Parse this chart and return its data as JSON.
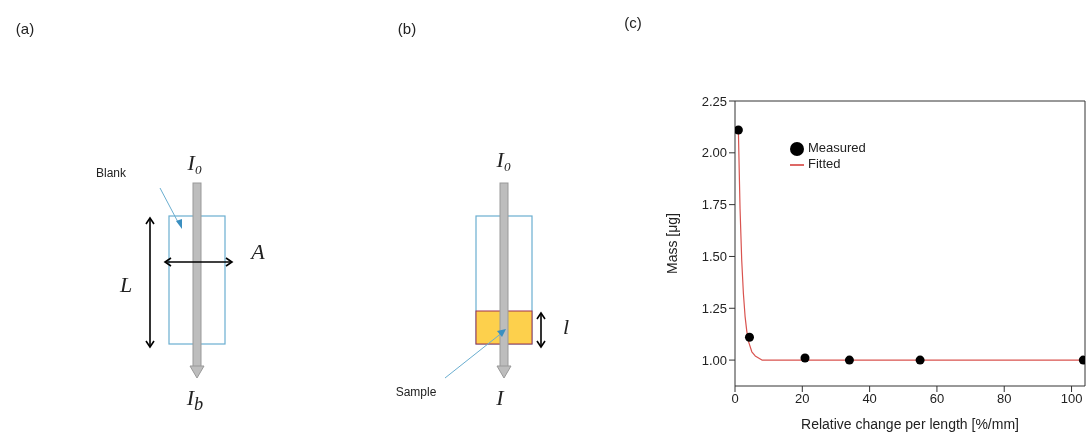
{
  "chart_data": [
    {
      "type": "other",
      "title": "(a)",
      "annotations": [
        "Blank",
        "I₀",
        "A",
        "L",
        "I$_{b}$"
      ]
    },
    {
      "type": "other",
      "title": "(b)",
      "annotations": [
        "I₀",
        "l",
        "Sample",
        "I"
      ]
    },
    {
      "type": "line",
      "title": "(c)",
      "xlabel": "Relative change per length [%/mm]",
      "ylabel": "Mass [μg]",
      "series": [
        {
          "name": "Measured",
          "type": "scatter",
          "marker": "circle",
          "color": "#000000",
          "x": [
            1,
            4.3,
            20.8,
            34,
            55,
            103.5
          ],
          "values": [
            2.11,
            1.11,
            1.01,
            1.0,
            1.0,
            1.0
          ]
        },
        {
          "name": "Fitted",
          "type": "line",
          "marker": "none",
          "color": "#d9534f",
          "x": [
            1,
            1.5,
            2,
            2.5,
            3,
            3.5,
            4,
            5,
            6,
            8,
            10,
            104
          ],
          "values": [
            2.11,
            1.73,
            1.48,
            1.32,
            1.21,
            1.14,
            1.09,
            1.04,
            1.02,
            1.0,
            1.0,
            1.0
          ]
        }
      ],
      "xlim": [
        0,
        104
      ],
      "ylim": [
        0.875,
        2.25
      ],
      "xticks": [
        0,
        20,
        40,
        60,
        80,
        100
      ],
      "yticks": [
        {
          "value": 1,
          "label": "1.00"
        },
        {
          "value": 1.25,
          "label": "1.25"
        },
        {
          "value": 1.5,
          "label": "1.50"
        },
        {
          "value": 1.75,
          "label": "1.75"
        },
        {
          "value": 2,
          "label": "2.00"
        },
        {
          "value": 2.25,
          "label": "2.25"
        }
      ],
      "legend": "top left",
      "line_style": "solid"
    }
  ]
}
